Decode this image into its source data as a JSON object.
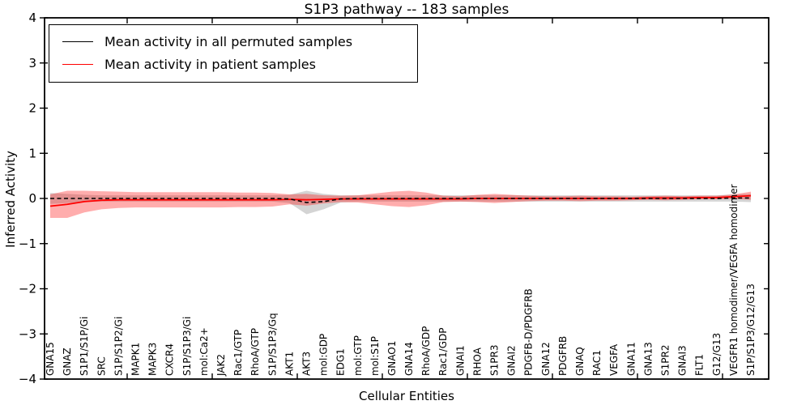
{
  "figure": {
    "title": "S1P3 pathway -- 183 samples",
    "xlabel": "Cellular Entities",
    "ylabel": "Inferred Activity"
  },
  "legend": {
    "entries": [
      {
        "label": "Mean activity in all permuted samples",
        "color": "#000000"
      },
      {
        "label": "Mean activity in patient samples",
        "color": "#ff0000"
      }
    ],
    "position": "upper left"
  },
  "chart_data": {
    "type": "line",
    "title": "S1P3 pathway -- 183 samples",
    "xlabel": "Cellular Entities",
    "ylabel": "Inferred Activity",
    "ylim": [
      -4,
      4
    ],
    "ytick_values": [
      4,
      3,
      2,
      1,
      0,
      -1,
      -2,
      -3,
      -4
    ],
    "ytick_labels": [
      "4",
      "3",
      "2",
      "1",
      "0",
      "−1",
      "−2",
      "−3",
      "−4"
    ],
    "grid": false,
    "legend_position": "upper left",
    "categories": [
      "GNA15",
      "GNAZ",
      "S1P1/S1P/Gi",
      "SRC",
      "S1P/S1P2/Gi",
      "MAPK1",
      "MAPK3",
      "CXCR4",
      "S1P/S1P3/Gi",
      "mol:Ca2+",
      "JAK2",
      "Rac1/GTP",
      "RhoA/GTP",
      "S1P/S1P3/Gq",
      "AKT1",
      "AKT3",
      "mol:GDP",
      "EDG1",
      "mol:GTP",
      "mol:S1P",
      "GNAO1",
      "GNA14",
      "RhoA/GDP",
      "Rac1/GDP",
      "GNAI1",
      "RHOA",
      "S1PR3",
      "GNAI2",
      "PDGFB-D/PDGFRB",
      "GNA12",
      "PDGFRB",
      "GNAQ",
      "RAC1",
      "VEGFA",
      "GNA11",
      "GNA13",
      "S1PR2",
      "GNAI3",
      "FLT1",
      "G12/G13",
      "VEGFR1 homodimer/VEGFA homodimer",
      "S1P/S1P3/G12/G13"
    ],
    "series": [
      {
        "name": "Mean activity in all permuted samples",
        "color": "#000000",
        "line_style": "dashed",
        "band_color": "#aaaaaa",
        "band_opacity": 0.5,
        "values": [
          0,
          0,
          0,
          0,
          0,
          0,
          0,
          0,
          0,
          0,
          0,
          0,
          0,
          0,
          -0.01,
          -0.09,
          -0.07,
          -0.01,
          0,
          0,
          0,
          0,
          0,
          0,
          0,
          0,
          0,
          0,
          0,
          0,
          0,
          0,
          0,
          0,
          0,
          0,
          0,
          0,
          0,
          0,
          0.01,
          0.01
        ],
        "band_std": [
          0.12,
          0.1,
          0.08,
          0.07,
          0.07,
          0.07,
          0.07,
          0.07,
          0.07,
          0.07,
          0.07,
          0.07,
          0.07,
          0.07,
          0.09,
          0.26,
          0.17,
          0.08,
          0.07,
          0.07,
          0.07,
          0.07,
          0.07,
          0.07,
          0.07,
          0.07,
          0.07,
          0.07,
          0.07,
          0.07,
          0.07,
          0.07,
          0.07,
          0.07,
          0.07,
          0.07,
          0.07,
          0.07,
          0.07,
          0.07,
          0.08,
          0.09
        ]
      },
      {
        "name": "Mean activity in patient samples",
        "color": "#ff0000",
        "line_style": "solid",
        "band_color": "#ff0000",
        "band_opacity": 0.32,
        "values": [
          -0.17,
          -0.13,
          -0.07,
          -0.04,
          -0.03,
          -0.03,
          -0.03,
          -0.03,
          -0.03,
          -0.03,
          -0.03,
          -0.03,
          -0.03,
          -0.03,
          -0.02,
          -0.03,
          -0.02,
          -0.01,
          -0.01,
          -0.01,
          -0.01,
          -0.01,
          -0.01,
          -0.01,
          -0.01,
          0,
          0,
          0,
          0,
          0,
          0,
          0,
          0,
          0,
          0,
          0.01,
          0.01,
          0.01,
          0.02,
          0.02,
          0.04,
          0.06
        ],
        "band_std": [
          0.26,
          0.3,
          0.24,
          0.2,
          0.18,
          0.17,
          0.17,
          0.17,
          0.17,
          0.17,
          0.17,
          0.16,
          0.16,
          0.15,
          0.11,
          0.13,
          0.09,
          0.07,
          0.08,
          0.12,
          0.16,
          0.18,
          0.14,
          0.07,
          0.06,
          0.08,
          0.1,
          0.08,
          0.06,
          0.05,
          0.05,
          0.06,
          0.05,
          0.05,
          0.04,
          0.04,
          0.05,
          0.04,
          0.04,
          0.04,
          0.05,
          0.09
        ]
      }
    ]
  }
}
